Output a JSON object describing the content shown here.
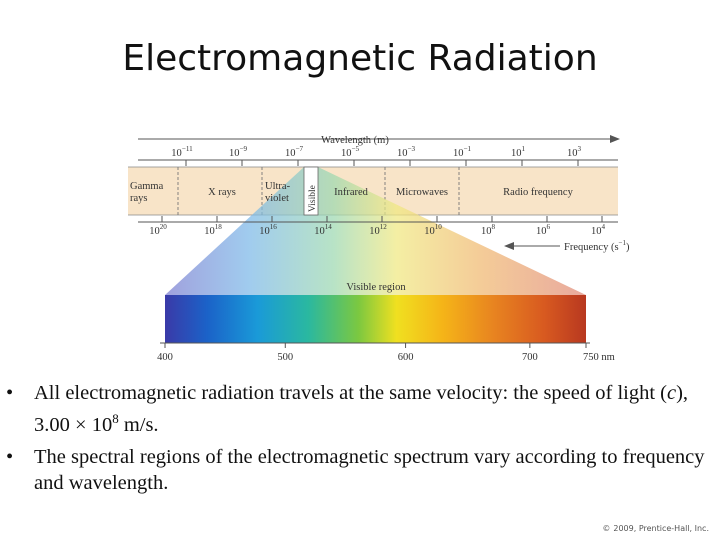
{
  "slide": {
    "title": "Electromagnetic Radiation",
    "bullets": [
      {
        "prefix": "All electromagnetic radiation travels at the same velocity: the speed of light (",
        "c": "c",
        "mid": "), 3.00 ",
        "times": "×",
        "base": " 10",
        "exp": "8",
        "suffix": " m/s."
      },
      {
        "text": "The spectral regions of the electromagnetic spectrum vary according to frequency and wavelength."
      }
    ],
    "bullet_symbol": "•",
    "copyright_symbol": "©",
    "copyright": "2009, Prentice-Hall, Inc."
  },
  "diagram": {
    "wavelength_label": "Wavelength (m)",
    "wavelength_ticks": [
      {
        "base": "10",
        "exp": "−11"
      },
      {
        "base": "10",
        "exp": "−9"
      },
      {
        "base": "10",
        "exp": "−7"
      },
      {
        "base": "10",
        "exp": "−5"
      },
      {
        "base": "10",
        "exp": "−3"
      },
      {
        "base": "10",
        "exp": "−1"
      },
      {
        "base": "10",
        "exp": "1"
      },
      {
        "base": "10",
        "exp": "3"
      }
    ],
    "regions": [
      {
        "lines": [
          "Gamma",
          "rays"
        ]
      },
      {
        "lines": [
          "X rays"
        ]
      },
      {
        "lines": [
          "Ultra-",
          "violet"
        ]
      },
      {
        "lines": [
          "Visible"
        ]
      },
      {
        "lines": [
          "Infrared"
        ]
      },
      {
        "lines": [
          "Microwaves"
        ]
      },
      {
        "lines": [
          "Radio frequency"
        ]
      }
    ],
    "frequency_ticks": [
      {
        "base": "10",
        "exp": "20"
      },
      {
        "base": "10",
        "exp": "18"
      },
      {
        "base": "10",
        "exp": "16"
      },
      {
        "base": "10",
        "exp": "14"
      },
      {
        "base": "10",
        "exp": "12"
      },
      {
        "base": "10",
        "exp": "10"
      },
      {
        "base": "10",
        "exp": "8"
      },
      {
        "base": "10",
        "exp": "6"
      },
      {
        "base": "10",
        "exp": "4"
      }
    ],
    "frequency_label": "Frequency (s",
    "frequency_label_exp": "−1",
    "frequency_label_close": ")",
    "visible_region_label": "Visible region",
    "visible_ticks": [
      "400",
      "500",
      "600",
      "700",
      "750 nm"
    ],
    "colors": {
      "band_bg": "#f8e4c8",
      "axis": "#555555",
      "spectrum": [
        "#3a3aa8",
        "#1b62c8",
        "#1a9ad8",
        "#2ab8a0",
        "#7cc840",
        "#f0e020",
        "#f5b418",
        "#e88420",
        "#d85a20",
        "#b83820"
      ]
    }
  }
}
